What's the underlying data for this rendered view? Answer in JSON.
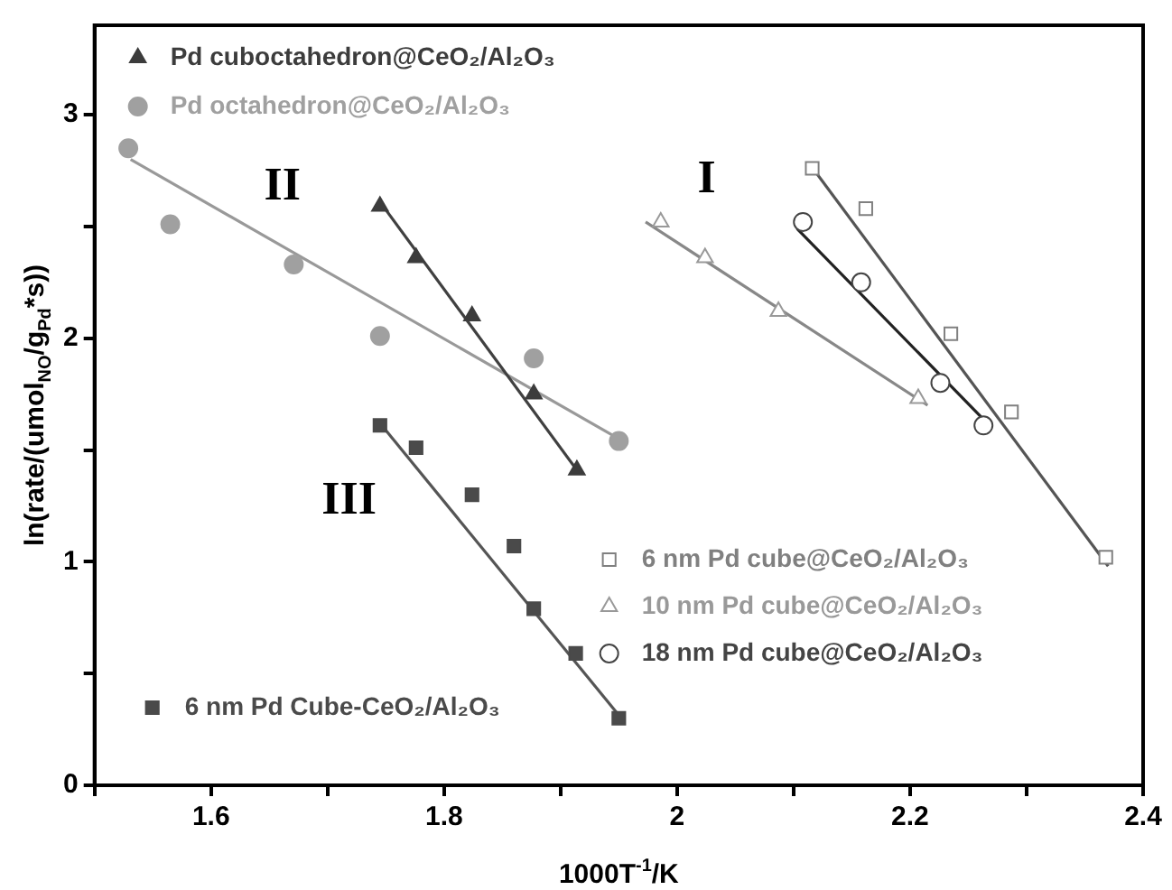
{
  "chart_data": {
    "type": "scatter",
    "xlabel": "1000T$^{-1}$/K",
    "ylabel": "ln(rate/(umol$_{NO}$/g$_{Pd}$*s))",
    "xlim": [
      1.5,
      2.4
    ],
    "ylim": [
      0,
      3.4
    ],
    "xticks": [
      {
        "value": 1.5,
        "label": null
      },
      1.6,
      {
        "value": 1.7,
        "label": null
      },
      1.8,
      {
        "value": 1.9,
        "label": null
      },
      2.0,
      {
        "value": 2.1,
        "label": null
      },
      2.2,
      {
        "value": 2.3,
        "label": null
      },
      2.4
    ],
    "yticks": [
      0,
      {
        "value": 0.5,
        "label": null
      },
      1,
      {
        "value": 1.5,
        "label": null
      },
      2,
      {
        "value": 2.5,
        "label": null
      },
      3
    ],
    "grid": false,
    "legend": "top left",
    "series": [
      {
        "name": "Pd cuboctahedron@CeO₂/Al₂O₃",
        "color": "#3c3c3c",
        "marker": "triangle",
        "x": [
          1.745,
          1.776,
          1.824,
          1.877,
          1.914
        ],
        "values": [
          2.59,
          2.36,
          2.1,
          1.75,
          1.41
        ]
      },
      {
        "name": "Pd octahedron@CeO₂/Al₂O₃",
        "color": "#a0a0a0",
        "marker": "circle",
        "x": [
          1.529,
          1.565,
          1.671,
          1.745,
          1.877,
          1.95
        ],
        "values": [
          2.85,
          2.51,
          2.33,
          2.01,
          1.91,
          1.54
        ]
      },
      {
        "name": "6 nm Pd Cube-CeO₂/Al₂O₃",
        "color": "#4a4a4a",
        "marker": "square",
        "x": [
          1.745,
          1.776,
          1.824,
          1.86,
          1.877,
          1.913,
          1.95
        ],
        "values": [
          1.61,
          1.51,
          1.3,
          1.07,
          0.79,
          0.59,
          0.3
        ]
      },
      {
        "name": "6 nm Pd cube@CeO₂/Al₂O₃",
        "color": "#808080",
        "marker": "square",
        "x": [
          2.116,
          2.162,
          2.235,
          2.287,
          2.368
        ],
        "values": [
          2.76,
          2.58,
          2.02,
          1.67,
          1.02
        ]
      },
      {
        "name": "10 nm Pd cube@CeO₂/Al₂O₃",
        "color": "#999999",
        "marker": "triangle",
        "x": [
          1.986,
          2.024,
          2.087,
          2.207
        ],
        "values": [
          2.52,
          2.36,
          2.12,
          1.73
        ]
      },
      {
        "name": "18 nm Pd cube@CeO₂/Al₂O₃",
        "color": "#444444",
        "marker": "circle",
        "x": [
          2.108,
          2.158,
          2.226,
          2.263
        ],
        "values": [
          2.52,
          2.25,
          1.8,
          1.61
        ]
      },
      {
        "type": "line",
        "color": "#404040",
        "marker": "none",
        "x": [
          1.745,
          1.914
        ],
        "values": [
          2.61,
          1.41
        ]
      },
      {
        "type": "line",
        "color": "#999999",
        "marker": "none",
        "x": [
          1.531,
          1.95
        ],
        "values": [
          2.8,
          1.55
        ]
      },
      {
        "type": "line",
        "color": "#555555",
        "marker": "none",
        "x": [
          1.745,
          1.949
        ],
        "values": [
          1.62,
          0.32
        ]
      },
      {
        "type": "line",
        "color": "#555555",
        "marker": "none",
        "x": [
          2.118,
          2.37
        ],
        "values": [
          2.75,
          0.98
        ]
      },
      {
        "type": "line",
        "color": "#888888",
        "marker": "none",
        "x": [
          1.973,
          2.215
        ],
        "values": [
          2.52,
          1.7
        ]
      },
      {
        "type": "line",
        "color": "#222222",
        "marker": "none",
        "x": [
          2.103,
          2.27
        ],
        "values": [
          2.49,
          1.6
        ]
      }
    ],
    "annotations": [
      "II",
      "III",
      "I"
    ]
  }
}
